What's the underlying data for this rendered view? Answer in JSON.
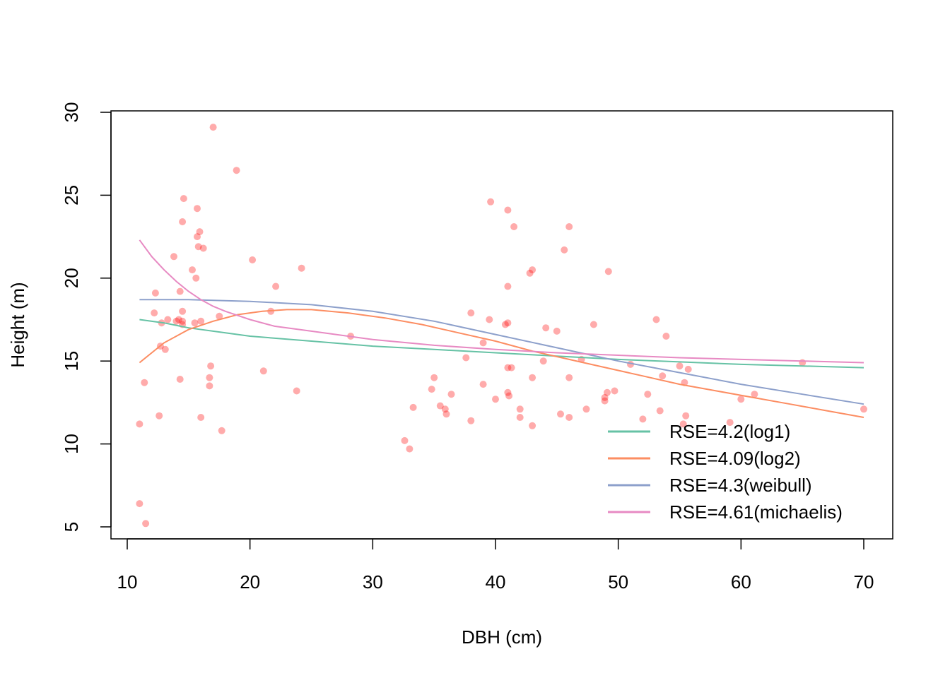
{
  "chart_data": {
    "type": "scatter",
    "title": "",
    "xlabel": "DBH (cm)",
    "ylabel": "Height (m)",
    "xlim": [
      10,
      70
    ],
    "ylim": [
      5,
      30
    ],
    "xticks": [
      10,
      20,
      30,
      40,
      50,
      60,
      70
    ],
    "yticks": [
      5,
      10,
      15,
      20,
      25,
      30
    ],
    "grid": false,
    "legend_position": "bottom-right",
    "point_color": "#ff0000",
    "points": [
      [
        11.0,
        11.2
      ],
      [
        11.4,
        13.7
      ],
      [
        11.0,
        6.4
      ],
      [
        11.5,
        5.2
      ],
      [
        12.2,
        17.9
      ],
      [
        12.3,
        19.1
      ],
      [
        12.6,
        11.7
      ],
      [
        12.7,
        15.9
      ],
      [
        12.8,
        17.3
      ],
      [
        13.1,
        15.7
      ],
      [
        13.3,
        17.5
      ],
      [
        13.8,
        21.3
      ],
      [
        14.0,
        17.4
      ],
      [
        14.2,
        17.5
      ],
      [
        14.3,
        13.9
      ],
      [
        14.3,
        19.2
      ],
      [
        14.5,
        17.4
      ],
      [
        14.5,
        18.0
      ],
      [
        14.5,
        17.2
      ],
      [
        14.5,
        23.4
      ],
      [
        14.6,
        24.8
      ],
      [
        15.3,
        20.5
      ],
      [
        15.5,
        17.3
      ],
      [
        15.6,
        20.0
      ],
      [
        15.7,
        24.2
      ],
      [
        15.7,
        22.5
      ],
      [
        15.8,
        21.9
      ],
      [
        15.9,
        22.8
      ],
      [
        16.0,
        11.6
      ],
      [
        16.0,
        17.4
      ],
      [
        16.2,
        21.8
      ],
      [
        16.7,
        14.0
      ],
      [
        16.7,
        13.5
      ],
      [
        16.8,
        14.7
      ],
      [
        17.0,
        29.1
      ],
      [
        17.5,
        17.7
      ],
      [
        17.7,
        10.8
      ],
      [
        18.9,
        26.5
      ],
      [
        20.2,
        21.1
      ],
      [
        21.1,
        14.4
      ],
      [
        21.7,
        18.0
      ],
      [
        22.1,
        19.5
      ],
      [
        23.8,
        13.2
      ],
      [
        24.2,
        20.6
      ],
      [
        28.2,
        16.5
      ],
      [
        32.6,
        10.2
      ],
      [
        33.0,
        9.7
      ],
      [
        33.3,
        12.2
      ],
      [
        34.8,
        13.3
      ],
      [
        35.0,
        14.0
      ],
      [
        35.5,
        12.3
      ],
      [
        35.9,
        12.1
      ],
      [
        36.0,
        11.8
      ],
      [
        36.4,
        13.0
      ],
      [
        37.6,
        15.2
      ],
      [
        38.0,
        17.9
      ],
      [
        38.0,
        11.4
      ],
      [
        39.0,
        16.1
      ],
      [
        39.0,
        13.6
      ],
      [
        39.5,
        17.5
      ],
      [
        39.6,
        24.6
      ],
      [
        40.0,
        12.7
      ],
      [
        40.8,
        17.2
      ],
      [
        41.0,
        17.3
      ],
      [
        41.0,
        19.5
      ],
      [
        41.0,
        24.1
      ],
      [
        41.0,
        14.6
      ],
      [
        41.0,
        13.1
      ],
      [
        41.1,
        12.9
      ],
      [
        41.3,
        14.6
      ],
      [
        41.5,
        23.1
      ],
      [
        42.0,
        12.1
      ],
      [
        42.0,
        11.6
      ],
      [
        42.8,
        20.3
      ],
      [
        43.0,
        20.5
      ],
      [
        43.0,
        14.0
      ],
      [
        43.0,
        11.1
      ],
      [
        43.9,
        15.0
      ],
      [
        44.1,
        17.0
      ],
      [
        45.0,
        16.8
      ],
      [
        45.3,
        11.8
      ],
      [
        45.6,
        21.7
      ],
      [
        46.0,
        23.1
      ],
      [
        46.0,
        14.0
      ],
      [
        46.0,
        11.6
      ],
      [
        47.0,
        15.1
      ],
      [
        47.4,
        12.1
      ],
      [
        48.0,
        17.2
      ],
      [
        48.9,
        12.6
      ],
      [
        48.9,
        12.8
      ],
      [
        49.1,
        13.1
      ],
      [
        49.2,
        20.4
      ],
      [
        49.7,
        13.2
      ],
      [
        51.0,
        14.8
      ],
      [
        52.0,
        11.5
      ],
      [
        52.4,
        13.0
      ],
      [
        53.1,
        17.5
      ],
      [
        53.4,
        12.0
      ],
      [
        53.6,
        14.1
      ],
      [
        53.9,
        16.5
      ],
      [
        55.0,
        14.7
      ],
      [
        55.3,
        11.2
      ],
      [
        55.4,
        13.7
      ],
      [
        55.5,
        11.7
      ],
      [
        55.7,
        14.5
      ],
      [
        59.1,
        11.3
      ],
      [
        60.0,
        12.7
      ],
      [
        61.1,
        13.0
      ],
      [
        65.0,
        14.9
      ],
      [
        70.0,
        12.1
      ]
    ],
    "series": [
      {
        "name": "RSE=4.2(log1)",
        "color": "#66c2a5",
        "x": [
          11,
          13,
          15,
          18,
          20,
          25,
          30,
          35,
          40,
          45,
          50,
          55,
          60,
          65,
          70
        ],
        "y": [
          17.5,
          17.3,
          17.0,
          16.7,
          16.5,
          16.2,
          15.9,
          15.7,
          15.5,
          15.3,
          15.1,
          14.95,
          14.8,
          14.7,
          14.6
        ]
      },
      {
        "name": "RSE=4.09(log2)",
        "color": "#fc8d62",
        "x": [
          11,
          13,
          15,
          17,
          19,
          21,
          23,
          25,
          28,
          31,
          34,
          37,
          40,
          43,
          46,
          49,
          52,
          55,
          58,
          61,
          64,
          67,
          70
        ],
        "y": [
          14.9,
          16.1,
          16.9,
          17.4,
          17.8,
          18.0,
          18.1,
          18.1,
          17.9,
          17.6,
          17.2,
          16.7,
          16.2,
          15.6,
          15.1,
          14.6,
          14.1,
          13.6,
          13.2,
          12.8,
          12.4,
          12.0,
          11.6
        ]
      },
      {
        "name": "RSE=4.3(weibull)",
        "color": "#8da0cb",
        "x": [
          11,
          15,
          20,
          25,
          30,
          35,
          40,
          45,
          50,
          55,
          60,
          65,
          70
        ],
        "y": [
          18.7,
          18.7,
          18.6,
          18.4,
          18.0,
          17.4,
          16.6,
          15.8,
          15.0,
          14.3,
          13.6,
          13.0,
          12.4
        ]
      },
      {
        "name": "RSE=4.61(michaelis)",
        "color": "#e78ac3",
        "x": [
          11,
          12,
          13,
          14,
          15,
          16,
          17,
          18,
          20,
          22,
          25,
          30,
          35,
          40,
          45,
          50,
          55,
          60,
          65,
          70
        ],
        "y": [
          22.3,
          21.3,
          20.5,
          19.8,
          19.2,
          18.7,
          18.3,
          18.0,
          17.5,
          17.1,
          16.8,
          16.3,
          15.95,
          15.7,
          15.5,
          15.35,
          15.2,
          15.1,
          15.0,
          14.9
        ]
      }
    ]
  }
}
